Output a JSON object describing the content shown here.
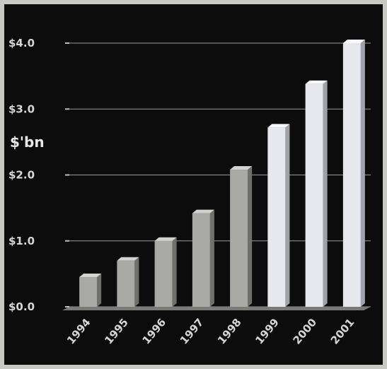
{
  "chart_data": {
    "type": "bar",
    "title": "",
    "xlabel": "",
    "ylabel": "$'bn",
    "categories": [
      "1994",
      "1995",
      "1996",
      "1997",
      "1998",
      "1999",
      "2000",
      "2001"
    ],
    "values": [
      0.45,
      0.7,
      1.0,
      1.42,
      2.08,
      2.72,
      3.38,
      4.0
    ],
    "yticks": [
      "$0.0",
      "$1.0",
      "$2.0",
      "$3.0",
      "$4.0"
    ],
    "ylim": [
      0,
      4
    ],
    "grid": true,
    "colors": {
      "background": "#0c0c0c",
      "bar_dark_front": "#a9aaa6",
      "bar_dark_side": "#6e706c",
      "bar_dark_top": "#d2d3cf",
      "bar_light_front": "#e6e8ee",
      "bar_light_side": "#9fa2aa",
      "bar_light_top": "#f7f8fb",
      "floor": "#7a7a76",
      "text": "#d6d6d6"
    }
  }
}
